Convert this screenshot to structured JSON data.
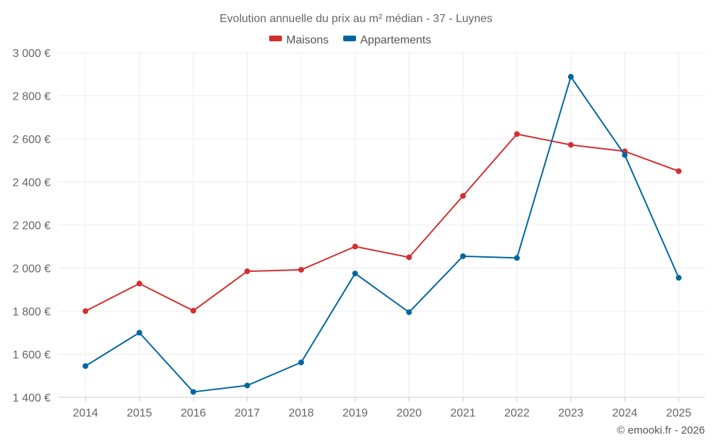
{
  "chart_data": {
    "type": "line",
    "title": "Evolution annuelle du prix au m² médian - 37 - Luynes",
    "x": [
      "2014",
      "2015",
      "2016",
      "2017",
      "2018",
      "2019",
      "2020",
      "2021",
      "2022",
      "2023",
      "2024",
      "2025"
    ],
    "series": [
      {
        "name": "Maisons",
        "color": "#d32f2f",
        "values": [
          1800,
          1928,
          1802,
          1985,
          1992,
          2100,
          2050,
          2335,
          2622,
          2572,
          2542,
          2450
        ]
      },
      {
        "name": "Appartements",
        "color": "#0066a1",
        "values": [
          1545,
          1700,
          1425,
          1455,
          1562,
          1975,
          1795,
          2055,
          2047,
          2888,
          2525,
          1955
        ]
      }
    ],
    "ylim": [
      1400,
      3000
    ],
    "yticks": [
      1400,
      1600,
      1800,
      2000,
      2200,
      2400,
      2600,
      2800,
      3000
    ],
    "ytick_labels": [
      "1 400 €",
      "1 600 €",
      "1 800 €",
      "2 000 €",
      "2 200 €",
      "2 400 €",
      "2 600 €",
      "2 800 €",
      "3 000 €"
    ],
    "grid": true,
    "legend_position": "top-center",
    "credit": "© emooki.fr - 2026"
  }
}
